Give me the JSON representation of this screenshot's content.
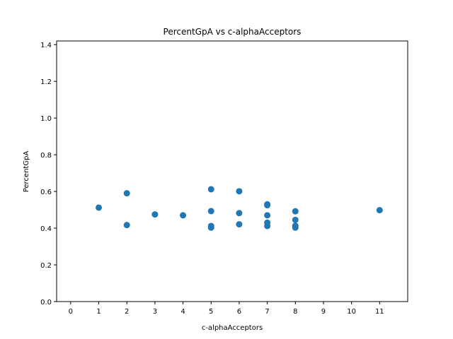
{
  "chart_data": {
    "type": "scatter",
    "title": "PercentGpA vs c-alphaAcceptors",
    "xlabel": "c-alphaAcceptors",
    "ylabel": "PercentGpA",
    "xlim": [
      -0.5,
      12
    ],
    "ylim": [
      0.0,
      1.42
    ],
    "xticks": [
      0,
      1,
      2,
      3,
      4,
      5,
      6,
      7,
      8,
      9,
      10,
      11
    ],
    "xtick_labels": [
      "0",
      "1",
      "2",
      "3",
      "4",
      "5",
      "6",
      "7",
      "8",
      "9",
      "10",
      "11"
    ],
    "yticks": [
      0.0,
      0.2,
      0.4,
      0.6,
      0.8,
      1.0,
      1.2,
      1.4
    ],
    "ytick_labels": [
      "0.0",
      "0.2",
      "0.4",
      "0.6",
      "0.8",
      "1.0",
      "1.2",
      "1.4"
    ],
    "grid": false,
    "marker_color": "#1f77b4",
    "series": [
      {
        "points": [
          {
            "x": 1,
            "y": 0.512
          },
          {
            "x": 2,
            "y": 0.59
          },
          {
            "x": 2,
            "y": 0.417
          },
          {
            "x": 3,
            "y": 0.475
          },
          {
            "x": 4,
            "y": 0.47
          },
          {
            "x": 5,
            "y": 0.612
          },
          {
            "x": 5,
            "y": 0.493
          },
          {
            "x": 5,
            "y": 0.412
          },
          {
            "x": 5,
            "y": 0.403
          },
          {
            "x": 6,
            "y": 0.601
          },
          {
            "x": 6,
            "y": 0.482
          },
          {
            "x": 6,
            "y": 0.421
          },
          {
            "x": 7,
            "y": 0.53
          },
          {
            "x": 7,
            "y": 0.525
          },
          {
            "x": 7,
            "y": 0.47
          },
          {
            "x": 7,
            "y": 0.43
          },
          {
            "x": 7,
            "y": 0.412
          },
          {
            "x": 8,
            "y": 0.492
          },
          {
            "x": 8,
            "y": 0.445
          },
          {
            "x": 8,
            "y": 0.413
          },
          {
            "x": 8,
            "y": 0.403
          },
          {
            "x": 11,
            "y": 0.498
          }
        ]
      }
    ]
  }
}
